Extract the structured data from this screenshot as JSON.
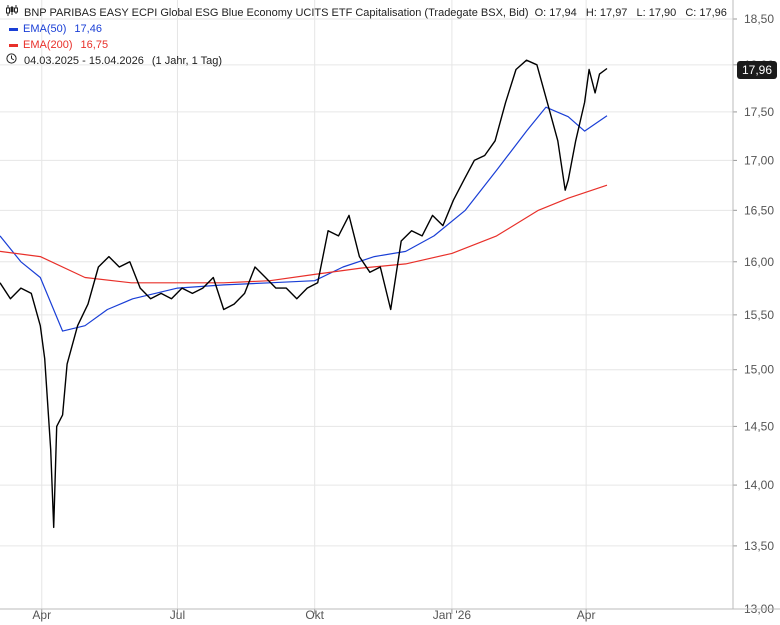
{
  "header": {
    "title": "BNP PARIBAS EASY ECPI Global ESG Blue Economy UCITS ETF Capitalisation (Tradegate BSX, Bid)",
    "open": "O: 17,94",
    "high": "H: 17,97",
    "low": "L: 17,90",
    "close": "C: 17,96",
    "chart_icon": "candlestick-chart-icon",
    "clock_icon": "clock-icon",
    "legend": [
      {
        "label": "EMA(50)",
        "value": "17,46",
        "color": "#1a3fd6"
      },
      {
        "label": "EMA(200)",
        "value": "16,75",
        "color": "#e8302a"
      }
    ],
    "range": "04.03.2025 - 15.04.2026",
    "interval": "(1 Jahr, 1 Tag)"
  },
  "last_price_label": "17,96",
  "chart_data": {
    "type": "line",
    "title": "BNP PARIBAS EASY ECPI Global ESG Blue Economy UCITS ETF Capitalisation (Tradegate BSX, Bid)",
    "x_tick_labels": [
      "Apr",
      "Jul",
      "Okt",
      "Jan '26",
      "Apr"
    ],
    "y_tick_labels": [
      "13,00",
      "13,50",
      "14,00",
      "14,50",
      "15,00",
      "15,50",
      "16,00",
      "16,50",
      "17,00",
      "17,50",
      "18,00",
      "18,50"
    ],
    "y_ticks": [
      13.0,
      13.5,
      14.0,
      14.5,
      15.0,
      15.5,
      16.0,
      16.5,
      17.0,
      17.5,
      18.0,
      18.5
    ],
    "y_scale": "log",
    "ylim": [
      13.0,
      18.6
    ],
    "grid": true,
    "legend_position": "top-left",
    "series": [
      {
        "name": "Price",
        "color": "#000000",
        "x": [
          "2025-03-04",
          "2025-03-11",
          "2025-03-18",
          "2025-03-25",
          "2025-03-31",
          "2025-04-03",
          "2025-04-07",
          "2025-04-09",
          "2025-04-11",
          "2025-04-15",
          "2025-04-18",
          "2025-04-25",
          "2025-05-02",
          "2025-05-09",
          "2025-05-16",
          "2025-05-23",
          "2025-05-30",
          "2025-06-06",
          "2025-06-13",
          "2025-06-20",
          "2025-06-27",
          "2025-07-04",
          "2025-07-11",
          "2025-07-18",
          "2025-07-25",
          "2025-08-01",
          "2025-08-08",
          "2025-08-15",
          "2025-08-22",
          "2025-08-29",
          "2025-09-05",
          "2025-09-12",
          "2025-09-19",
          "2025-09-26",
          "2025-10-03",
          "2025-10-10",
          "2025-10-17",
          "2025-10-24",
          "2025-10-31",
          "2025-11-07",
          "2025-11-14",
          "2025-11-21",
          "2025-11-28",
          "2025-12-05",
          "2025-12-12",
          "2025-12-19",
          "2025-12-26",
          "2026-01-02",
          "2026-01-09",
          "2026-01-16",
          "2026-01-23",
          "2026-01-30",
          "2026-02-06",
          "2026-02-13",
          "2026-02-20",
          "2026-02-27",
          "2026-03-06",
          "2026-03-13",
          "2026-03-18",
          "2026-03-20",
          "2026-03-25",
          "2026-03-31",
          "2026-04-03",
          "2026-04-07",
          "2026-04-10",
          "2026-04-15"
        ],
        "y": [
          15.8,
          15.65,
          15.75,
          15.7,
          15.4,
          15.1,
          14.3,
          13.65,
          14.5,
          14.6,
          15.05,
          15.4,
          15.6,
          15.95,
          16.05,
          15.95,
          16.0,
          15.75,
          15.65,
          15.7,
          15.65,
          15.75,
          15.7,
          15.75,
          15.85,
          15.55,
          15.6,
          15.7,
          15.95,
          15.85,
          15.75,
          15.75,
          15.65,
          15.75,
          15.8,
          16.3,
          16.25,
          16.45,
          16.05,
          15.9,
          15.95,
          15.55,
          16.2,
          16.3,
          16.25,
          16.45,
          16.35,
          16.6,
          16.8,
          17.0,
          17.05,
          17.2,
          17.6,
          17.95,
          18.05,
          18.0,
          17.6,
          17.2,
          16.7,
          16.8,
          17.2,
          17.6,
          17.95,
          17.7,
          17.9,
          17.96
        ]
      },
      {
        "name": "EMA(50)",
        "color": "#1a3fd6",
        "x": [
          "2025-03-04",
          "2025-03-18",
          "2025-03-31",
          "2025-04-15",
          "2025-04-30",
          "2025-05-15",
          "2025-06-01",
          "2025-07-01",
          "2025-08-01",
          "2025-09-01",
          "2025-10-01",
          "2025-10-20",
          "2025-11-10",
          "2025-12-01",
          "2025-12-20",
          "2026-01-10",
          "2026-01-31",
          "2026-02-20",
          "2026-03-05",
          "2026-03-20",
          "2026-03-31",
          "2026-04-15"
        ],
        "y": [
          16.25,
          16.0,
          15.85,
          15.35,
          15.4,
          15.55,
          15.65,
          15.75,
          15.78,
          15.8,
          15.82,
          15.95,
          16.05,
          16.1,
          16.25,
          16.5,
          16.9,
          17.3,
          17.55,
          17.45,
          17.3,
          17.46
        ]
      },
      {
        "name": "EMA(200)",
        "color": "#e8302a",
        "x": [
          "2025-03-04",
          "2025-03-31",
          "2025-04-30",
          "2025-05-31",
          "2025-07-01",
          "2025-08-01",
          "2025-09-01",
          "2025-10-01",
          "2025-11-01",
          "2025-12-01",
          "2026-01-01",
          "2026-01-31",
          "2026-02-28",
          "2026-03-20",
          "2026-04-15"
        ],
        "y": [
          16.1,
          16.05,
          15.85,
          15.8,
          15.8,
          15.8,
          15.82,
          15.88,
          15.94,
          15.98,
          16.08,
          16.25,
          16.5,
          16.62,
          16.75
        ]
      }
    ]
  }
}
